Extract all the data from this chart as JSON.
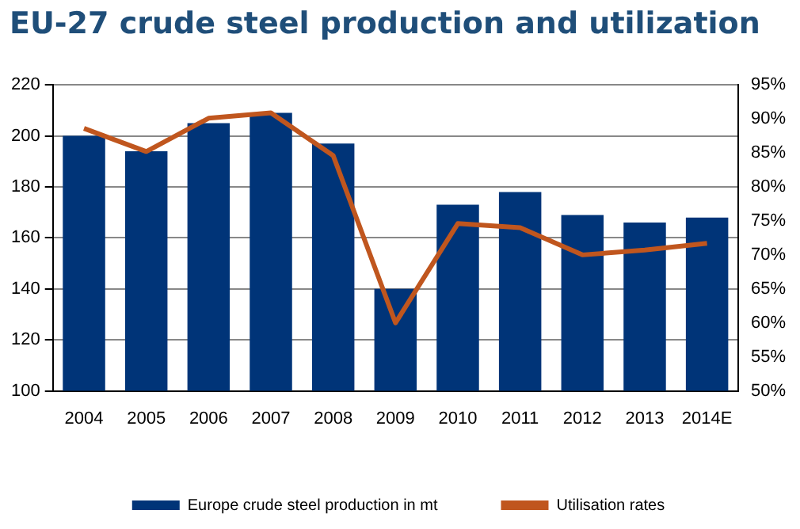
{
  "chart_data": {
    "type": "bar",
    "title": "EU-27 crude steel production and utilization",
    "categories": [
      "2004",
      "2005",
      "2006",
      "2007",
      "2008",
      "2009",
      "2010",
      "2011",
      "2012",
      "2013",
      "2014E"
    ],
    "series": [
      {
        "name": "Europe crude steel production in mt",
        "color": "#003478",
        "values": [
          200,
          194,
          205,
          209,
          197,
          140,
          173,
          178,
          169,
          166,
          168
        ]
      },
      {
        "name": "Utilisation rates",
        "type": "line",
        "axis": "y2",
        "color": "#c0561e",
        "values": [
          88.6,
          85.2,
          90.1,
          90.9,
          84.6,
          60,
          74.6,
          74,
          70,
          70.7,
          71.7
        ]
      }
    ],
    "ylim": [
      100,
      220
    ],
    "yticks": [
      100,
      120,
      140,
      160,
      180,
      200,
      220
    ],
    "y2lim": [
      50,
      95
    ],
    "y2ticks": [
      {
        "value": 50,
        "label": "50%"
      },
      {
        "value": 55,
        "label": "55%"
      },
      {
        "value": 60,
        "label": "60%"
      },
      {
        "value": 65,
        "label": "65%"
      },
      {
        "value": 70,
        "label": "70%"
      },
      {
        "value": 75,
        "label": "75%"
      },
      {
        "value": 80,
        "label": "80%"
      },
      {
        "value": 85,
        "label": "85%"
      },
      {
        "value": 90,
        "label": "90%"
      },
      {
        "value": 95,
        "label": "95%"
      }
    ],
    "grid": "y",
    "legend": "bottom",
    "marker": "none"
  }
}
